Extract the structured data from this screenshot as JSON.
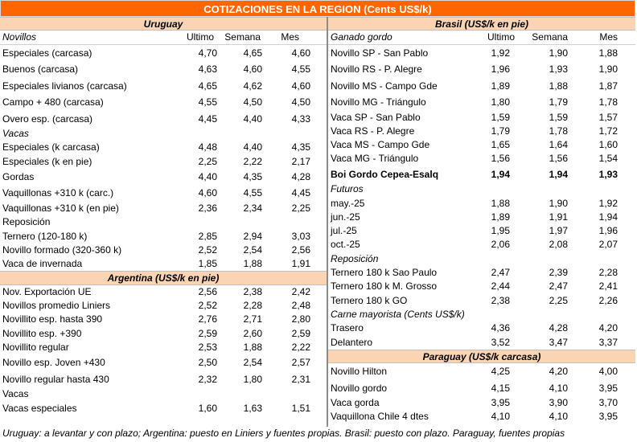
{
  "title": "COTIZACIONES EN LA REGION (Cents US$/k)",
  "uruguay": {
    "header": "Uruguay",
    "col_labels": [
      "Novillos",
      "Ultimo",
      "Semana",
      "Mes"
    ],
    "rows": [
      {
        "name": "Especiales (carcasa)",
        "ultimo": "4,70",
        "semana": "4,65",
        "mes": "4,60"
      },
      {
        "name": "Buenos (carcasa)",
        "ultimo": "4,63",
        "semana": "4,60",
        "mes": "4,55"
      },
      {
        "name": "Especiales livianos (carcasa)",
        "ultimo": "4,65",
        "semana": "4,62",
        "mes": "4,60"
      },
      {
        "name": "Campo + 480 (carcasa)",
        "ultimo": "4,55",
        "semana": "4,50",
        "mes": "4,50"
      },
      {
        "name": "Overo esp. (carcasa)",
        "ultimo": "4,45",
        "semana": "4,40",
        "mes": "4,33"
      }
    ],
    "vacas_label": "Vacas",
    "vacas": [
      {
        "name": "Especiales (k carcasa)",
        "ultimo": "4,48",
        "semana": "4,40",
        "mes": "4,35"
      },
      {
        "name": "Especiales (k en pie)",
        "ultimo": "2,25",
        "semana": "2,22",
        "mes": "2,17"
      },
      {
        "name": "Gordas",
        "ultimo": "4,40",
        "semana": "4,35",
        "mes": "4,28"
      },
      {
        "name": "Vaquillonas +310 k (carc.)",
        "ultimo": "4,60",
        "semana": "4,55",
        "mes": "4,45"
      },
      {
        "name": "Vaquillonas +310 k (en pie)",
        "ultimo": "2,36",
        "semana": "2,34",
        "mes": "2,25"
      }
    ],
    "reposicion_label": "Reposición",
    "reposicion": [
      {
        "name": "Ternero (120-180 k)",
        "ultimo": "2,85",
        "semana": "2,94",
        "mes": "3,03"
      },
      {
        "name": "Novillo formado (320-360 k)",
        "ultimo": "2,52",
        "semana": "2,54",
        "mes": "2,56"
      },
      {
        "name": "Vaca de invernada",
        "ultimo": "1,85",
        "semana": "1,88",
        "mes": "1,91"
      }
    ]
  },
  "argentina": {
    "header": "Argentina (US$/k en pie)",
    "rows": [
      {
        "name": "Nov. Exportación UE",
        "ultimo": "2,56",
        "semana": "2,38",
        "mes": "2,42"
      },
      {
        "name": "Novillos promedio Liniers",
        "ultimo": "2,52",
        "semana": "2,28",
        "mes": "2,48"
      },
      {
        "name": "Novillito esp. hasta 390",
        "ultimo": "2,76",
        "semana": "2,71",
        "mes": "2,80"
      },
      {
        "name": "Novillito esp. +390",
        "ultimo": "2,59",
        "semana": "2,60",
        "mes": "2,59"
      },
      {
        "name": "Novillito regular",
        "ultimo": "2,53",
        "semana": "1,88",
        "mes": "2,22"
      },
      {
        "name": "Novillo esp. Joven +430",
        "ultimo": "2,50",
        "semana": "2,54",
        "mes": "2,57"
      },
      {
        "name": "Novillo regular hasta 430",
        "ultimo": "2,32",
        "semana": "1,80",
        "mes": "2,31"
      },
      {
        "name": "Vacas",
        "ultimo": "",
        "semana": "",
        "mes": ""
      },
      {
        "name": "Vacas especiales",
        "ultimo": "1,60",
        "semana": "1,63",
        "mes": "1,51"
      }
    ]
  },
  "brasil": {
    "header": "Brasil (US$/k en pie)",
    "col_labels": [
      "Ganado gordo",
      "Ultimo",
      "Semana",
      "Mes"
    ],
    "rows": [
      {
        "name": "Novillo SP - San Pablo",
        "ultimo": "1,92",
        "semana": "1,90",
        "mes": "1,88"
      },
      {
        "name": "Novillo RS - P. Alegre",
        "ultimo": "1,96",
        "semana": "1,93",
        "mes": "1,90"
      },
      {
        "name": "Novillo MS - Campo Gde",
        "ultimo": "1,89",
        "semana": "1,88",
        "mes": "1,87"
      },
      {
        "name": "Novillo MG - Triángulo",
        "ultimo": "1,80",
        "semana": "1,79",
        "mes": "1,78"
      },
      {
        "name": "Vaca SP - San Pablo",
        "ultimo": "1,59",
        "semana": "1,59",
        "mes": "1,57"
      },
      {
        "name": "Vaca RS - P. Alegre",
        "ultimo": "1,79",
        "semana": "1,78",
        "mes": "1,72"
      },
      {
        "name": "Vaca MS - Campo Gde",
        "ultimo": "1,65",
        "semana": "1,64",
        "mes": "1,60"
      },
      {
        "name": "Vaca MG - Triángulo",
        "ultimo": "1,56",
        "semana": "1,56",
        "mes": "1,54"
      }
    ],
    "boi": {
      "name": "Boi Gordo Cepea-Esalq",
      "ultimo": "1,94",
      "semana": "1,94",
      "mes": "1,93"
    },
    "futuros_label": "Futuros",
    "futuros": [
      {
        "name": "may.-25",
        "ultimo": "1,88",
        "semana": "1,90",
        "mes": "1,92"
      },
      {
        "name": "jun.-25",
        "ultimo": "1,89",
        "semana": "1,91",
        "mes": "1,94"
      },
      {
        "name": "jul.-25",
        "ultimo": "1,95",
        "semana": "1,97",
        "mes": "1,96"
      },
      {
        "name": "oct.-25",
        "ultimo": "2,06",
        "semana": "2,08",
        "mes": "2,07"
      }
    ],
    "reposicion_label": "Reposición",
    "reposicion": [
      {
        "name": "Ternero 180 k Sao Paulo",
        "ultimo": "2,47",
        "semana": "2,39",
        "mes": "2,28"
      },
      {
        "name": "Ternero 180 k M. Grosso",
        "ultimo": "2,44",
        "semana": "2,47",
        "mes": "2,41"
      },
      {
        "name": "Ternero 180 k GO",
        "ultimo": "2,38",
        "semana": "2,25",
        "mes": "2,26"
      }
    ],
    "carne_label": "Carne mayorista (Cents US$/k)",
    "carne": [
      {
        "name": "Trasero",
        "ultimo": "4,36",
        "semana": "4,28",
        "mes": "4,20"
      },
      {
        "name": "Delantero",
        "ultimo": "3,52",
        "semana": "3,47",
        "mes": "3,37"
      }
    ]
  },
  "paraguay": {
    "header": "Paraguay (US$/k carcasa)",
    "rows": [
      {
        "name": "Novillo Hilton",
        "ultimo": "4,25",
        "semana": "4,20",
        "mes": "4,00"
      },
      {
        "name": "Novillo gordo",
        "ultimo": "4,15",
        "semana": "4,10",
        "mes": "3,95"
      },
      {
        "name": "Vaca gorda",
        "ultimo": "3,95",
        "semana": "3,90",
        "mes": "3,70"
      },
      {
        "name": "Vaquillona Chile 4 dtes",
        "ultimo": "4,10",
        "semana": "4,10",
        "mes": "3,95"
      }
    ]
  },
  "footer": "Uruguay: a levantar y con plazo; Argentina: puesto en Liniers y fuentes propias. Brasil: puesto con plazo. Paraguay, fuentes propias"
}
